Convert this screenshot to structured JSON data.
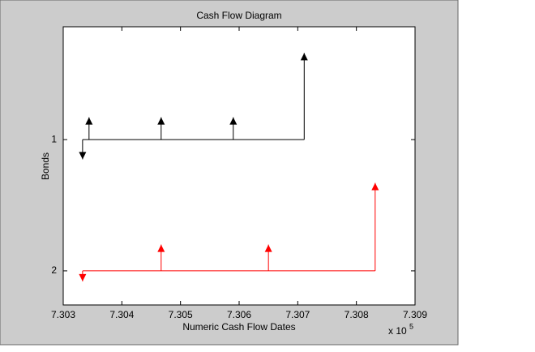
{
  "chart_data": {
    "type": "cashflow",
    "title": "Cash Flow Diagram",
    "xlabel": "Numeric Cash Flow Dates",
    "ylabel": "Bonds",
    "x_multiplier": {
      "base": "x 10",
      "exponent": "5"
    },
    "xlim": [
      7.303,
      7.309
    ],
    "xticks": [
      7.303,
      7.304,
      7.305,
      7.306,
      7.307,
      7.308,
      7.309
    ],
    "ylim": [
      0.14,
      2.26
    ],
    "yticks": [
      1,
      2
    ],
    "y_reversed": true,
    "series": [
      {
        "color": "#000000",
        "dates": [
          7.30333,
          7.30344,
          7.30467,
          7.3059,
          7.30711
        ],
        "amounts": [
          -0.15,
          0.17,
          0.17,
          0.17,
          0.66
        ]
      },
      {
        "color": "#ff0000",
        "dates": [
          7.30333,
          7.30467,
          7.3065,
          7.30832
        ],
        "amounts": [
          -0.08,
          0.2,
          0.2,
          0.67
        ]
      }
    ]
  }
}
